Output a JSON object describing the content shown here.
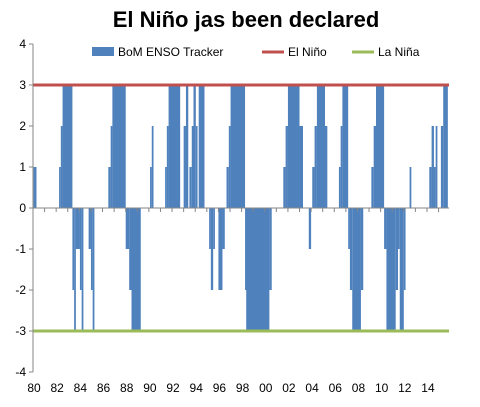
{
  "chart_data": {
    "type": "bar",
    "title": "El Niño jas been declared",
    "ylim": [
      -4,
      4
    ],
    "yticks": [
      -4,
      -3,
      -2,
      -1,
      0,
      1,
      2,
      3,
      4
    ],
    "xlim": [
      1980,
      1995.9
    ],
    "xticks": [
      {
        "year": 1980,
        "label": "80"
      },
      {
        "year": 1982,
        "label": "82"
      },
      {
        "year": 1984,
        "label": "84"
      },
      {
        "year": 1986,
        "label": "86"
      },
      {
        "year": 1988,
        "label": "88"
      },
      {
        "year": 1990,
        "label": "90"
      },
      {
        "year": 1992,
        "label": "92"
      },
      {
        "year": 1994,
        "label": "94"
      },
      {
        "year": 1996,
        "label": "96"
      },
      {
        "year": 1998,
        "label": "98"
      },
      {
        "year": 2000,
        "label": "00"
      },
      {
        "year": 2002,
        "label": "02"
      },
      {
        "year": 2004,
        "label": "04"
      },
      {
        "year": 2006,
        "label": "06"
      },
      {
        "year": 2008,
        "label": "08"
      },
      {
        "year": 2010,
        "label": "10"
      },
      {
        "year": 2012,
        "label": "12"
      },
      {
        "year": 2014,
        "label": "14"
      }
    ],
    "legend": {
      "placement": "top",
      "entries": [
        {
          "name": "BoM ENSO Tracker",
          "color": "#4f81bd",
          "kind": "bar"
        },
        {
          "name": "El Niño",
          "color": "#c0504d",
          "kind": "line"
        },
        {
          "name": "La Niña",
          "color": "#9bbb59",
          "kind": "line"
        }
      ]
    },
    "series": [
      {
        "name": "BoM ENSO Tracker",
        "color": "#4f81bd",
        "points": [
          {
            "start": 1980.05,
            "end": 1980.3,
            "value": 1
          },
          {
            "start": 1982.25,
            "end": 1982.4,
            "value": 1
          },
          {
            "start": 1982.4,
            "end": 1982.55,
            "value": 2
          },
          {
            "start": 1982.55,
            "end": 1983.4,
            "value": 3
          },
          {
            "start": 1983.4,
            "end": 1983.55,
            "value": -2
          },
          {
            "start": 1983.55,
            "end": 1983.7,
            "value": -3
          },
          {
            "start": 1983.7,
            "end": 1984.05,
            "value": -1
          },
          {
            "start": 1984.05,
            "end": 1984.2,
            "value": -2
          },
          {
            "start": 1984.2,
            "end": 1984.35,
            "value": -3
          },
          {
            "start": 1984.8,
            "end": 1985.0,
            "value": -1
          },
          {
            "start": 1985.0,
            "end": 1985.15,
            "value": -2
          },
          {
            "start": 1985.15,
            "end": 1985.3,
            "value": -3
          },
          {
            "start": 1986.5,
            "end": 1986.7,
            "value": 1
          },
          {
            "start": 1986.7,
            "end": 1986.85,
            "value": 2
          },
          {
            "start": 1986.85,
            "end": 1988.0,
            "value": 3
          },
          {
            "start": 1988.0,
            "end": 1988.3,
            "value": -1
          },
          {
            "start": 1988.3,
            "end": 1988.5,
            "value": -2
          },
          {
            "start": 1988.5,
            "end": 1989.3,
            "value": -3
          },
          {
            "start": 1990.1,
            "end": 1990.25,
            "value": 1
          },
          {
            "start": 1990.25,
            "end": 1990.4,
            "value": 2
          },
          {
            "start": 1991.4,
            "end": 1991.55,
            "value": 1
          },
          {
            "start": 1991.55,
            "end": 1991.7,
            "value": 2
          },
          {
            "start": 1991.7,
            "end": 1992.7,
            "value": 3
          },
          {
            "start": 1993.0,
            "end": 1993.2,
            "value": 2
          },
          {
            "start": 1993.2,
            "end": 1993.4,
            "value": 3
          },
          {
            "start": 1993.5,
            "end": 1993.7,
            "value": 1
          },
          {
            "start": 1993.7,
            "end": 1993.85,
            "value": 2
          },
          {
            "start": 1993.85,
            "end": 1994.05,
            "value": 3
          },
          {
            "start": 1994.05,
            "end": 1994.2,
            "value": 2
          },
          {
            "start": 1994.3,
            "end": 1994.8,
            "value": 3
          },
          {
            "start": 1995.2,
            "end": 1995.35,
            "value": -1
          },
          {
            "start": 1995.35,
            "end": 1995.55,
            "value": -2
          },
          {
            "start": 1995.55,
            "end": 1995.7,
            "value": -1
          }
        ]
      },
      {
        "name": "El Niño",
        "color": "#c0504d",
        "value": 3
      },
      {
        "name": "La Niña",
        "color": "#9bbb59",
        "value": -3
      }
    ]
  },
  "extra_bars": [
    {
      "start": 1996.0,
      "end": 1996.35,
      "value": -2
    },
    {
      "start": 1996.35,
      "end": 1996.55,
      "value": -1
    },
    {
      "start": 1996.7,
      "end": 1996.9,
      "value": 1
    },
    {
      "start": 1996.9,
      "end": 1997.05,
      "value": 2
    },
    {
      "start": 1997.05,
      "end": 1998.3,
      "value": 3
    },
    {
      "start": 1998.3,
      "end": 1999.0,
      "value": -2
    },
    {
      "start": 1998.4,
      "end": 2000.4,
      "value": -3
    },
    {
      "start": 2000.4,
      "end": 2000.6,
      "value": -2
    },
    {
      "start": 2001.6,
      "end": 2001.8,
      "value": 1
    },
    {
      "start": 2001.8,
      "end": 2002.0,
      "value": 2
    },
    {
      "start": 2002.0,
      "end": 2003.0,
      "value": 3
    },
    {
      "start": 2003.0,
      "end": 2003.3,
      "value": 2
    },
    {
      "start": 2003.8,
      "end": 2004.0,
      "value": -1
    },
    {
      "start": 2004.1,
      "end": 2004.3,
      "value": 1
    },
    {
      "start": 2004.3,
      "end": 2004.5,
      "value": 2
    },
    {
      "start": 2004.5,
      "end": 2005.2,
      "value": 3
    },
    {
      "start": 2005.2,
      "end": 2005.4,
      "value": 2
    },
    {
      "start": 2006.4,
      "end": 2006.55,
      "value": 1
    },
    {
      "start": 2006.55,
      "end": 2006.7,
      "value": 2
    },
    {
      "start": 2006.7,
      "end": 2007.2,
      "value": 3
    },
    {
      "start": 2007.2,
      "end": 2007.35,
      "value": -1
    },
    {
      "start": 2007.35,
      "end": 2007.55,
      "value": -2
    },
    {
      "start": 2007.55,
      "end": 2008.3,
      "value": -3
    },
    {
      "start": 2008.3,
      "end": 2008.5,
      "value": -2
    },
    {
      "start": 2009.2,
      "end": 2009.4,
      "value": 1
    },
    {
      "start": 2009.4,
      "end": 2009.6,
      "value": 2
    },
    {
      "start": 2009.6,
      "end": 2010.3,
      "value": 3
    },
    {
      "start": 2010.3,
      "end": 2010.5,
      "value": -1
    },
    {
      "start": 2010.5,
      "end": 2011.3,
      "value": -3
    },
    {
      "start": 2011.3,
      "end": 2011.5,
      "value": -2
    },
    {
      "start": 2011.5,
      "end": 2011.65,
      "value": -1
    },
    {
      "start": 2011.65,
      "end": 2012.0,
      "value": -3
    },
    {
      "start": 2012.0,
      "end": 2012.15,
      "value": -2
    },
    {
      "start": 2012.5,
      "end": 2012.65,
      "value": 1
    },
    {
      "start": 2014.2,
      "end": 2014.4,
      "value": 1
    },
    {
      "start": 2014.4,
      "end": 2014.6,
      "value": 2
    },
    {
      "start": 2014.6,
      "end": 2014.75,
      "value": 1
    },
    {
      "start": 2014.75,
      "end": 2014.9,
      "value": 2
    },
    {
      "start": 2015.2,
      "end": 2015.4,
      "value": 2
    },
    {
      "start": 2015.4,
      "end": 2015.8,
      "value": 3
    }
  ]
}
